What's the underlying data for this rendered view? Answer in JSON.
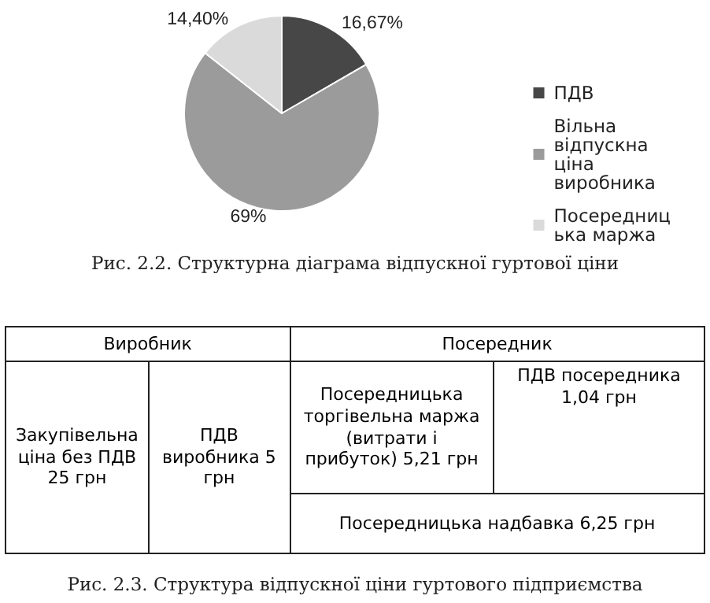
{
  "chart_data": [
    {
      "type": "pie",
      "title": "Рис. 2.2. Структурна діаграма відпускної гуртової ціни",
      "categories": [
        "ПДВ",
        "Вільна відпускна ціна виробника",
        "Посередницька маржа"
      ],
      "values": [
        16.67,
        69,
        14.4
      ],
      "colors": [
        "#474747",
        "#9b9b9b",
        "#dadada"
      ],
      "value_labels": [
        "16,67%",
        "69%",
        "14,40%"
      ],
      "legend": "right"
    },
    {
      "type": "other",
      "title": "Рис. 2.3. Структура відпускної ціни гуртового підприємства",
      "annotations": [
        "Виробник",
        "Посередник",
        "Закупівельна ціна без ПДВ 25 грн",
        "ПДВ виробника 5 грн",
        "Посередницька торгівельна маржа (витрати і прибуток) 5,21 грн",
        "ПДВ посередника 1,04 грн",
        "Посередницька надбавка 6,25 грн"
      ]
    }
  ]
}
